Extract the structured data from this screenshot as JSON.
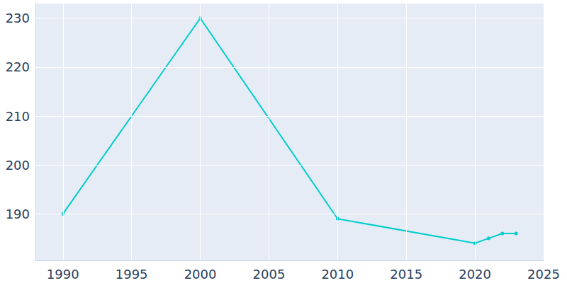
{
  "chart_data": {
    "type": "line",
    "x": [
      1990,
      2000,
      2010,
      2020,
      2021,
      2022,
      2023
    ],
    "values": [
      190,
      230,
      189,
      184,
      185,
      186,
      186
    ],
    "color": "#00cdcd",
    "marker": "circle",
    "xlim": [
      1988,
      2025
    ],
    "xticks": [
      1990,
      1995,
      2000,
      2005,
      2010,
      2015,
      2020,
      2025
    ],
    "ylim": [
      180.5,
      233
    ],
    "yticks": [
      190,
      200,
      210,
      220,
      230
    ],
    "grid": true
  }
}
